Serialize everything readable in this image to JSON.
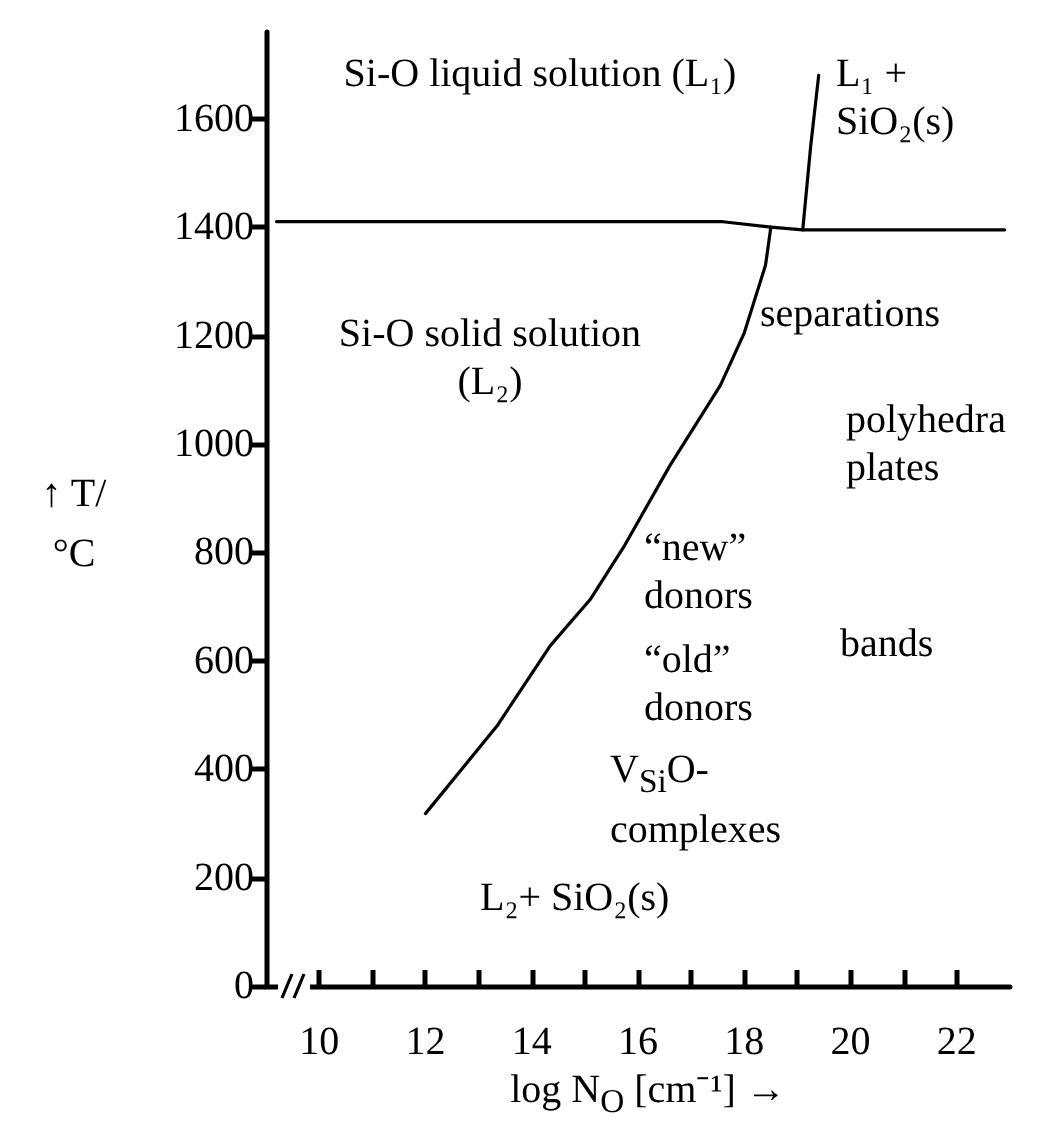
{
  "chart_data": {
    "type": "line",
    "xlabel": "log N$_{O}$ [cm⁻¹] →",
    "ylabel": "↑ T/°C",
    "xlim": [
      9,
      23
    ],
    "ylim": [
      0,
      1760
    ],
    "xticks": [
      10,
      {
        "value": 11,
        "label": null
      },
      12,
      {
        "value": 13,
        "label": null
      },
      14,
      {
        "value": 15,
        "label": null
      },
      16,
      {
        "value": 17,
        "label": null
      },
      18,
      {
        "value": 19,
        "label": null
      },
      20,
      {
        "value": 21,
        "label": null
      },
      22
    ],
    "yticks": [
      0,
      200,
      400,
      600,
      800,
      1000,
      1200,
      1400,
      1600
    ],
    "grid": false,
    "marker": "none",
    "line_style": "solid",
    "series": [
      {
        "color": "#000000",
        "x": [
          9.2,
          17.6,
          18.5,
          19.1,
          22.9
        ],
        "values": [
          1410,
          1410,
          1400,
          1395,
          1395
        ]
      },
      {
        "color": "#000000",
        "x": [
          19.1,
          19.25,
          19.4
        ],
        "values": [
          1395,
          1550,
          1680
        ]
      },
      {
        "color": "#000000",
        "x": [
          12.0,
          13.35,
          14.35,
          15.1,
          15.75,
          16.6,
          17.55,
          18.0,
          18.4,
          18.5
        ],
        "values": [
          318,
          480,
          628,
          713,
          813,
          960,
          1108,
          1205,
          1330,
          1400
        ]
      }
    ],
    "annotations": [
      "Si-O liquid solution (L₁)",
      "L₁ + SiO₂(s)",
      "Si-O solid solution (L₂)",
      "separations",
      "polyhedra plates",
      "“new” donors",
      "bands",
      "“old” donors",
      "V$_{Si}$O-complexes",
      "L₂+ SiO₂(s)"
    ]
  }
}
